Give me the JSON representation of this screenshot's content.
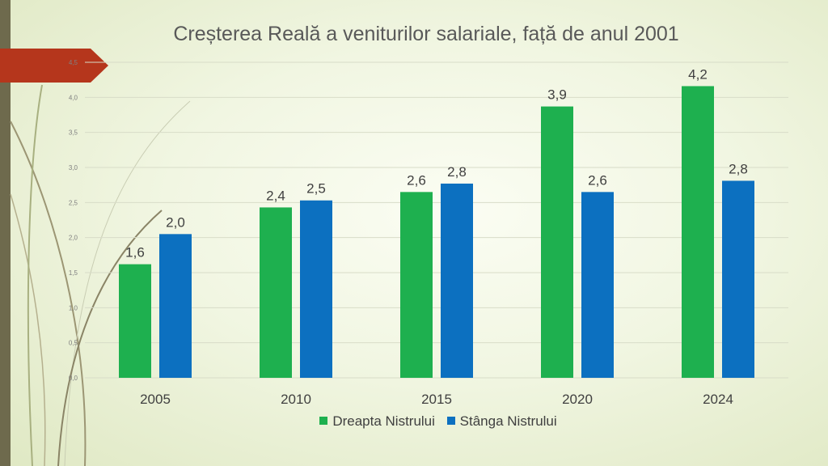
{
  "colors": {
    "series_dreapta": "#1EB04F",
    "series_stanga": "#0C70C0",
    "grid": "#d8dcc8",
    "axis_text": "#808080",
    "label_text": "#404040",
    "left_bar": "#6E6A4D",
    "arrow": "#B5361C"
  },
  "chart_data": {
    "type": "bar",
    "title": "Creșterea Reală a veniturilor salariale, față de anul 2001",
    "xlabel": "",
    "ylabel": "",
    "categories": [
      "2005",
      "2010",
      "2015",
      "2020",
      "2024"
    ],
    "series": [
      {
        "name": "Dreapta Nistrului",
        "values": [
          1.62,
          2.43,
          2.65,
          3.87,
          4.16
        ],
        "labels": [
          "1,6",
          "2,4",
          "2,6",
          "3,9",
          "4,2"
        ]
      },
      {
        "name": "Stânga Nistrului",
        "values": [
          2.05,
          2.53,
          2.77,
          2.65,
          2.81
        ],
        "labels": [
          "2,0",
          "2,5",
          "2,8",
          "2,6",
          "2,8"
        ]
      }
    ],
    "ylim": [
      0,
      4.5
    ],
    "yticks": [
      0,
      0.5,
      1.0,
      1.5,
      2.0,
      2.5,
      3.0,
      3.5,
      4.0,
      4.5
    ],
    "ytick_labels": [
      "0,0",
      "0,5",
      "1,0",
      "1,5",
      "2,0",
      "2,5",
      "3,0",
      "3,5",
      "4,0",
      "4,5"
    ],
    "grid": true,
    "legend": "bottom"
  }
}
